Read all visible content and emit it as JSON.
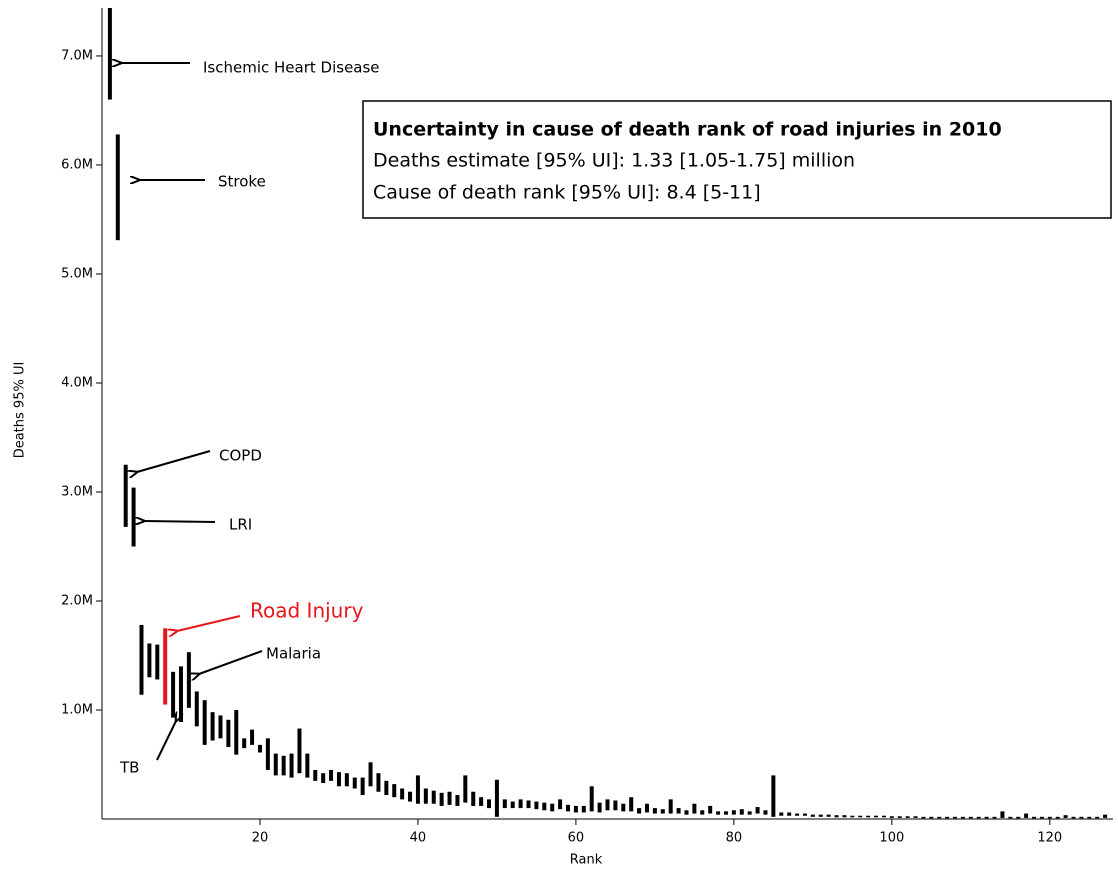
{
  "chart_data": {
    "type": "range-bar",
    "x_label": "Rank",
    "y_label": "Deaths 95% UI",
    "xlim": [
      0,
      128
    ],
    "ylim": [
      0,
      7.44
    ],
    "xticks": [
      20,
      40,
      60,
      80,
      100,
      120
    ],
    "yticks": [
      {
        "value": 1,
        "label": "1.0M"
      },
      {
        "value": 2,
        "label": "2.0M"
      },
      {
        "value": 3,
        "label": "3.0M"
      },
      {
        "value": 4,
        "label": "4.0M"
      },
      {
        "value": 5,
        "label": "5.0M"
      },
      {
        "value": 6,
        "label": "6.0M"
      },
      {
        "value": 7,
        "label": "7.0M"
      }
    ],
    "color": "#000000",
    "highlight_rank": 8,
    "highlight_color": "#e8161a",
    "x": [
      1,
      2,
      3,
      4,
      5,
      6,
      7,
      8,
      9,
      10,
      11,
      12,
      13,
      14,
      15,
      16,
      17,
      18,
      19,
      20,
      21,
      22,
      23,
      24,
      25,
      26,
      27,
      28,
      29,
      30,
      31,
      32,
      33,
      34,
      35,
      36,
      37,
      38,
      39,
      40,
      41,
      42,
      43,
      44,
      45,
      46,
      47,
      48,
      49,
      50,
      51,
      52,
      53,
      54,
      55,
      56,
      57,
      58,
      59,
      60,
      61,
      62,
      63,
      64,
      65,
      66,
      67,
      68,
      69,
      70,
      71,
      72,
      73,
      74,
      75,
      76,
      77,
      78,
      79,
      80,
      81,
      82,
      83,
      84,
      85,
      86,
      87,
      88,
      89,
      90,
      91,
      92,
      93,
      94,
      95,
      96,
      97,
      98,
      99,
      100,
      101,
      102,
      103,
      104,
      105,
      106,
      107,
      108,
      109,
      110,
      111,
      112,
      113,
      114,
      115,
      116,
      117,
      118,
      119,
      120,
      121,
      122,
      123,
      124,
      125,
      126,
      127
    ],
    "low": [
      6.6,
      5.31,
      2.68,
      2.5,
      1.14,
      1.3,
      1.28,
      1.05,
      0.93,
      0.89,
      1.02,
      0.85,
      0.68,
      0.72,
      0.74,
      0.66,
      0.59,
      0.65,
      0.68,
      0.61,
      0.45,
      0.4,
      0.4,
      0.38,
      0.42,
      0.38,
      0.35,
      0.33,
      0.35,
      0.3,
      0.3,
      0.28,
      0.22,
      0.3,
      0.25,
      0.22,
      0.2,
      0.18,
      0.16,
      0.14,
      0.14,
      0.14,
      0.12,
      0.13,
      0.12,
      0.15,
      0.12,
      0.12,
      0.1,
      0.02,
      0.1,
      0.1,
      0.1,
      0.1,
      0.09,
      0.08,
      0.07,
      0.09,
      0.07,
      0.06,
      0.06,
      0.07,
      0.06,
      0.08,
      0.08,
      0.07,
      0.07,
      0.05,
      0.06,
      0.05,
      0.05,
      0.05,
      0.05,
      0.04,
      0.05,
      0.04,
      0.05,
      0.04,
      0.04,
      0.04,
      0.04,
      0.04,
      0.05,
      0.04,
      0.02,
      0.03,
      0.03,
      0.03,
      0.03,
      0.02,
      0.02,
      0.02,
      0.015,
      0.015,
      0.015,
      0.015,
      0.015,
      0.015,
      0.015,
      0.01,
      0.01,
      0.01,
      0.01,
      0.01,
      0.01,
      0.01,
      0.01,
      0.01,
      0.01,
      0.01,
      0.01,
      0.01,
      0.01,
      0.01,
      0.01,
      0.01,
      0.01,
      0.01,
      0.01,
      0.01,
      0.01,
      0.01,
      0.01,
      0.01,
      0.01,
      0.01,
      0.01
    ],
    "high": [
      7.44,
      6.28,
      3.25,
      3.04,
      1.78,
      1.61,
      1.6,
      1.75,
      1.35,
      1.4,
      1.53,
      1.17,
      1.09,
      0.98,
      0.95,
      0.91,
      1.0,
      0.74,
      0.82,
      0.68,
      0.74,
      0.6,
      0.58,
      0.6,
      0.83,
      0.6,
      0.45,
      0.42,
      0.45,
      0.43,
      0.42,
      0.38,
      0.38,
      0.52,
      0.42,
      0.35,
      0.32,
      0.28,
      0.25,
      0.4,
      0.28,
      0.26,
      0.24,
      0.25,
      0.22,
      0.4,
      0.25,
      0.2,
      0.18,
      0.36,
      0.18,
      0.16,
      0.18,
      0.17,
      0.16,
      0.15,
      0.14,
      0.18,
      0.13,
      0.12,
      0.12,
      0.3,
      0.15,
      0.18,
      0.17,
      0.14,
      0.2,
      0.1,
      0.14,
      0.1,
      0.09,
      0.18,
      0.1,
      0.08,
      0.14,
      0.08,
      0.12,
      0.07,
      0.07,
      0.08,
      0.09,
      0.07,
      0.11,
      0.08,
      0.4,
      0.06,
      0.06,
      0.05,
      0.05,
      0.04,
      0.04,
      0.04,
      0.035,
      0.035,
      0.03,
      0.03,
      0.03,
      0.03,
      0.03,
      0.025,
      0.025,
      0.025,
      0.025,
      0.02,
      0.02,
      0.02,
      0.02,
      0.02,
      0.02,
      0.02,
      0.02,
      0.02,
      0.02,
      0.07,
      0.02,
      0.02,
      0.05,
      0.02,
      0.02,
      0.02,
      0.02,
      0.035,
      0.02,
      0.02,
      0.02,
      0.02,
      0.04
    ],
    "annotations": [
      {
        "text": "Ischemic Heart Disease",
        "color": "#000000"
      },
      {
        "text": "Stroke",
        "color": "#000000"
      },
      {
        "text": "COPD",
        "color": "#000000"
      },
      {
        "text": "LRI",
        "color": "#000000"
      },
      {
        "text": "Road Injury",
        "color": "#e8161a"
      },
      {
        "text": "Malaria",
        "color": "#000000"
      },
      {
        "text": "TB",
        "color": "#000000"
      }
    ],
    "info_box": {
      "title": "Uncertainty in cause of death rank of road injuries in 2010",
      "lines": [
        "Deaths estimate [95% UI]: 1.33 [1.05-1.75] million",
        "Cause of death rank [95% UI]: 8.4 [5-11]"
      ]
    }
  }
}
